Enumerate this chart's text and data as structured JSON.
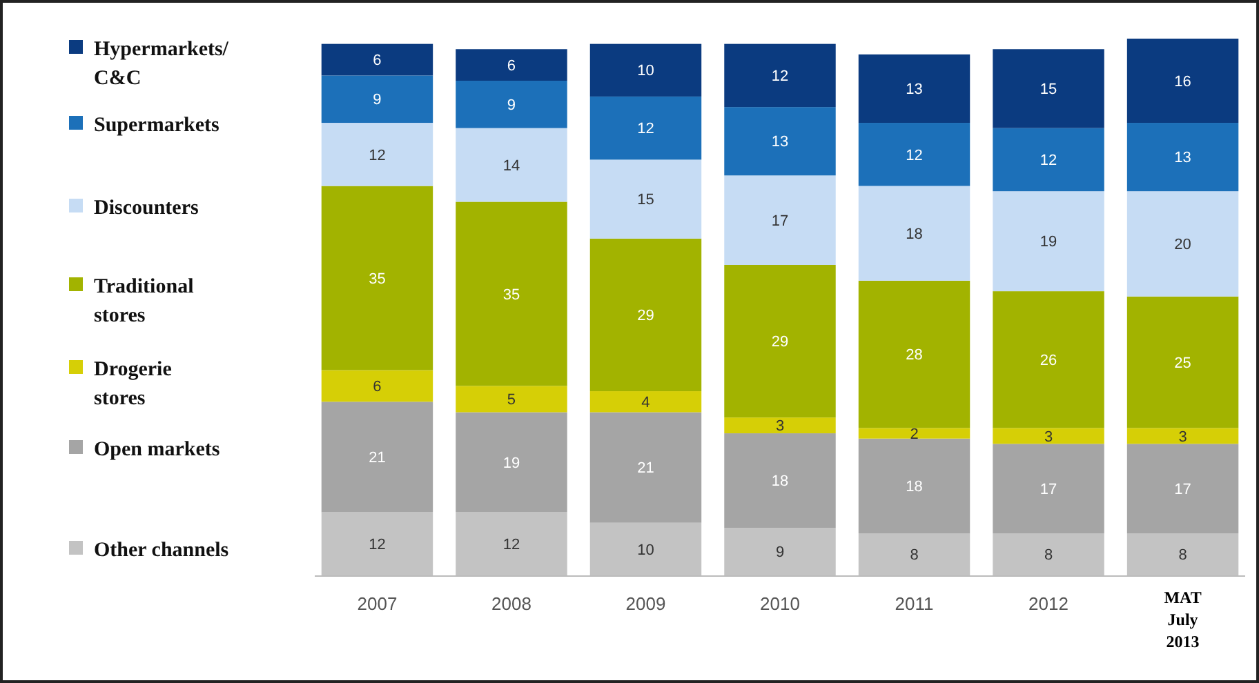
{
  "chart_data": {
    "type": "bar",
    "stacked": true,
    "data_labels": true,
    "legend": "left",
    "categories": [
      "2007",
      "2008",
      "2009",
      "2010",
      "2011",
      "2012",
      "MAT\nJuly\n2013"
    ],
    "series": [
      {
        "name": "Other channels",
        "color": "#c3c3c3",
        "values": [
          12,
          12,
          10,
          9,
          8,
          8,
          8
        ]
      },
      {
        "name": "Open markets",
        "color": "#a5a5a5",
        "values": [
          21,
          19,
          21,
          18,
          18,
          17,
          17
        ]
      },
      {
        "name": "Drogerie\nstores",
        "color": "#d6cf06",
        "values": [
          6,
          5,
          4,
          3,
          2,
          3,
          3
        ]
      },
      {
        "name": "Traditional\nstores",
        "color": "#a2b300",
        "values": [
          35,
          35,
          29,
          29,
          28,
          26,
          25
        ]
      },
      {
        "name": "Discounters",
        "color": "#c6dcf4",
        "values": [
          12,
          14,
          15,
          17,
          18,
          19,
          20
        ]
      },
      {
        "name": "Supermarkets",
        "color": "#1c70b9",
        "values": [
          9,
          9,
          12,
          13,
          12,
          12,
          13
        ]
      },
      {
        "name": "Hypermarkets/\nC&C",
        "color": "#0b3b80",
        "values": [
          6,
          6,
          10,
          12,
          13,
          15,
          16
        ]
      }
    ]
  }
}
